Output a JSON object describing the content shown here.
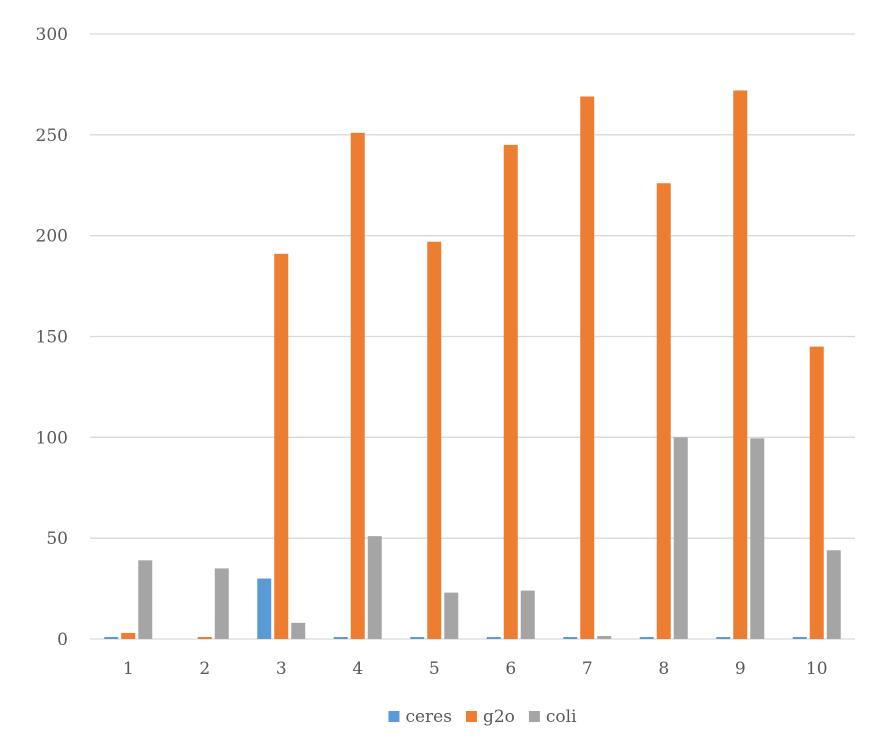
{
  "chart_data": {
    "type": "bar",
    "categories": [
      "1",
      "2",
      "3",
      "4",
      "5",
      "6",
      "7",
      "8",
      "9",
      "10"
    ],
    "series": [
      {
        "name": "ceres",
        "color": "#5B9BD5",
        "values": [
          1,
          0,
          30,
          1,
          1,
          1,
          1,
          1,
          1,
          1
        ]
      },
      {
        "name": "g2o",
        "color": "#ED7D31",
        "values": [
          3,
          1,
          191,
          251,
          197,
          245,
          269,
          226,
          272,
          145
        ]
      },
      {
        "name": "coli",
        "color": "#A5A5A5",
        "values": [
          39,
          35,
          8,
          51,
          23,
          24,
          1.5,
          100,
          99.5,
          44
        ]
      }
    ],
    "y_ticks": [
      "0",
      "50",
      "100",
      "150",
      "200",
      "250",
      "300"
    ],
    "ylim": [
      0,
      300
    ],
    "grid": true,
    "gridline_color": "#D9D9D9",
    "legend_position": "bottom",
    "title": "",
    "xlabel": "",
    "ylabel": ""
  }
}
